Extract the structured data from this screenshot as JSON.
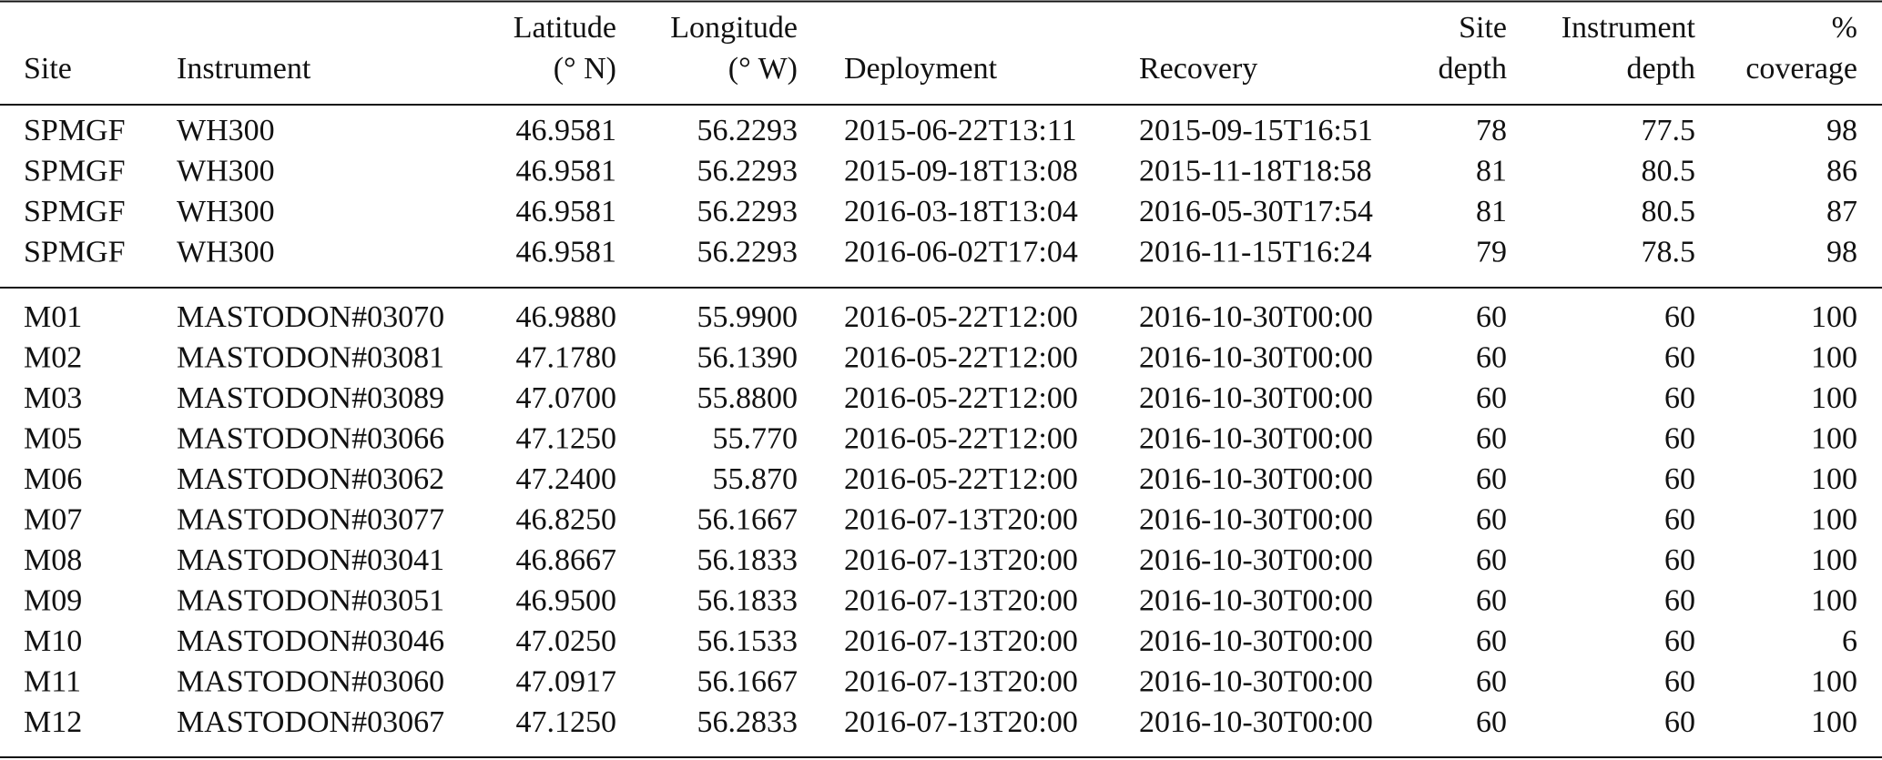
{
  "table": {
    "columns": [
      [
        "Site"
      ],
      [
        "Instrument"
      ],
      [
        "Latitude",
        "(° N)"
      ],
      [
        "Longitude",
        "(° W)"
      ],
      [
        "Deployment"
      ],
      [
        "Recovery"
      ],
      [
        "Site",
        "depth"
      ],
      [
        "Instrument",
        "depth"
      ],
      [
        "%",
        "coverage"
      ]
    ],
    "groups": [
      [
        [
          "SPMGF",
          "WH300",
          "46.9581",
          "56.2293",
          "2015-06-22T13:11",
          "2015-09-15T16:51",
          "78",
          "77.5",
          "98"
        ],
        [
          "SPMGF",
          "WH300",
          "46.9581",
          "56.2293",
          "2015-09-18T13:08",
          "2015-11-18T18:58",
          "81",
          "80.5",
          "86"
        ],
        [
          "SPMGF",
          "WH300",
          "46.9581",
          "56.2293",
          "2016-03-18T13:04",
          "2016-05-30T17:54",
          "81",
          "80.5",
          "87"
        ],
        [
          "SPMGF",
          "WH300",
          "46.9581",
          "56.2293",
          "2016-06-02T17:04",
          "2016-11-15T16:24",
          "79",
          "78.5",
          "98"
        ]
      ],
      [
        [
          "M01",
          "MASTODON#03070",
          "46.9880",
          "55.9900",
          "2016-05-22T12:00",
          "2016-10-30T00:00",
          "60",
          "60",
          "100"
        ],
        [
          "M02",
          "MASTODON#03081",
          "47.1780",
          "56.1390",
          "2016-05-22T12:00",
          "2016-10-30T00:00",
          "60",
          "60",
          "100"
        ],
        [
          "M03",
          "MASTODON#03089",
          "47.0700",
          "55.8800",
          "2016-05-22T12:00",
          "2016-10-30T00:00",
          "60",
          "60",
          "100"
        ],
        [
          "M05",
          "MASTODON#03066",
          "47.1250",
          "55.770",
          "2016-05-22T12:00",
          "2016-10-30T00:00",
          "60",
          "60",
          "100"
        ],
        [
          "M06",
          "MASTODON#03062",
          "47.2400",
          "55.870",
          "2016-05-22T12:00",
          "2016-10-30T00:00",
          "60",
          "60",
          "100"
        ],
        [
          "M07",
          "MASTODON#03077",
          "46.8250",
          "56.1667",
          "2016-07-13T20:00",
          "2016-10-30T00:00",
          "60",
          "60",
          "100"
        ],
        [
          "M08",
          "MASTODON#03041",
          "46.8667",
          "56.1833",
          "2016-07-13T20:00",
          "2016-10-30T00:00",
          "60",
          "60",
          "100"
        ],
        [
          "M09",
          "MASTODON#03051",
          "46.9500",
          "56.1833",
          "2016-07-13T20:00",
          "2016-10-30T00:00",
          "60",
          "60",
          "100"
        ],
        [
          "M10",
          "MASTODON#03046",
          "47.0250",
          "56.1533",
          "2016-07-13T20:00",
          "2016-10-30T00:00",
          "60",
          "60",
          "6"
        ],
        [
          "M11",
          "MASTODON#03060",
          "47.0917",
          "56.1667",
          "2016-07-13T20:00",
          "2016-10-30T00:00",
          "60",
          "60",
          "100"
        ],
        [
          "M12",
          "MASTODON#03067",
          "47.1250",
          "56.2833",
          "2016-07-13T20:00",
          "2016-10-30T00:00",
          "60",
          "60",
          "100"
        ]
      ]
    ]
  }
}
